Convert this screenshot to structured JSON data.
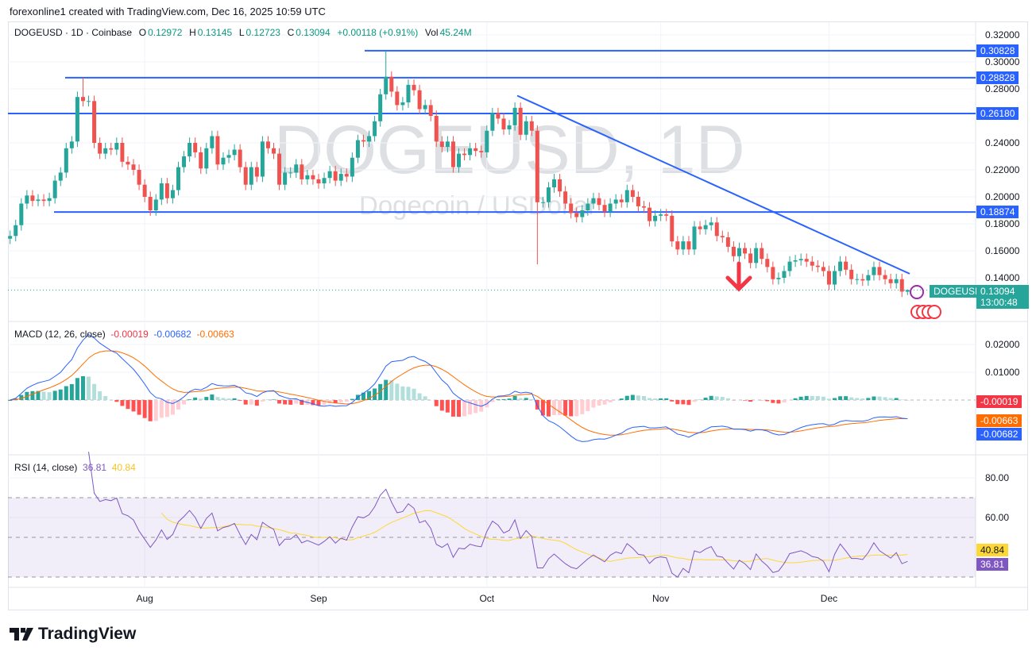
{
  "credit": "forexonline1 created with TradingView.com, Dec 16, 2025 10:59 UTC",
  "legend": {
    "symbol": "DOGEUSD · 1D · Coinbase",
    "o_label": "O",
    "o": "0.12972",
    "h_label": "H",
    "h": "0.13145",
    "l_label": "L",
    "l": "0.12723",
    "c_label": "C",
    "c": "0.13094",
    "change": "+0.00118 (+0.91%)",
    "vol_label": "Vol",
    "vol": "45.24M"
  },
  "watermark": {
    "title": "DOGEUSD, 1D",
    "subtitle": "Dogecoin / USDollar"
  },
  "colors": {
    "up": "#26a69a",
    "down": "#ef5350",
    "level_line": "#2962ff",
    "macd": "#2962ff",
    "signal": "#ff6d00",
    "rsi": "#7e57c2",
    "rsi_ma": "#fdd835",
    "arrow": "#f23645"
  },
  "price_tag": {
    "symbol": "DOGEUSD",
    "price": "0.13094",
    "countdown": "13:00:48"
  },
  "macd_legend": {
    "title": "MACD (12, 26, close)",
    "hist": "-0.00019",
    "macd": "-0.00682",
    "signal": "-0.00663"
  },
  "rsi_legend": {
    "title": "RSI (14, close)",
    "rsi": "36.81",
    "ma": "40.84"
  },
  "bottom_logo": "TradingView",
  "chart_data": [
    {
      "type": "candlestick",
      "title": "DOGEUSD · 1D · Coinbase",
      "ylim": [
        0.125,
        0.32
      ],
      "y_ticks": [
        "0.32000",
        "0.30000",
        "0.28000",
        "0.24000",
        "0.22000",
        "0.20000",
        "0.18000",
        "0.16000",
        "0.14000"
      ],
      "x_ticks": [
        "Aug",
        "Sep",
        "Oct",
        "Nov",
        "Dec"
      ],
      "closes": [
        0.171,
        0.179,
        0.195,
        0.201,
        0.197,
        0.198,
        0.197,
        0.199,
        0.212,
        0.218,
        0.236,
        0.241,
        0.274,
        0.271,
        0.271,
        0.24,
        0.232,
        0.236,
        0.235,
        0.24,
        0.226,
        0.224,
        0.22,
        0.209,
        0.2,
        0.19,
        0.198,
        0.21,
        0.199,
        0.205,
        0.222,
        0.23,
        0.24,
        0.233,
        0.221,
        0.236,
        0.245,
        0.224,
        0.229,
        0.231,
        0.235,
        0.222,
        0.209,
        0.222,
        0.215,
        0.241,
        0.236,
        0.232,
        0.209,
        0.218,
        0.218,
        0.224,
        0.213,
        0.216,
        0.213,
        0.21,
        0.214,
        0.219,
        0.212,
        0.217,
        0.215,
        0.229,
        0.242,
        0.241,
        0.245,
        0.256,
        0.276,
        0.289,
        0.278,
        0.268,
        0.27,
        0.283,
        0.279,
        0.265,
        0.268,
        0.26,
        0.241,
        0.237,
        0.241,
        0.222,
        0.232,
        0.231,
        0.236,
        0.234,
        0.233,
        0.249,
        0.262,
        0.258,
        0.25,
        0.253,
        0.266,
        0.246,
        0.256,
        0.249,
        0.196,
        0.196,
        0.207,
        0.213,
        0.204,
        0.195,
        0.188,
        0.185,
        0.19,
        0.195,
        0.199,
        0.194,
        0.189,
        0.195,
        0.198,
        0.196,
        0.205,
        0.2,
        0.193,
        0.192,
        0.182,
        0.186,
        0.187,
        0.186,
        0.167,
        0.161,
        0.167,
        0.161,
        0.178,
        0.176,
        0.179,
        0.181,
        0.171,
        0.17,
        0.163,
        0.156,
        0.162,
        0.158,
        0.151,
        0.162,
        0.154,
        0.148,
        0.139,
        0.14,
        0.145,
        0.152,
        0.153,
        0.154,
        0.152,
        0.149,
        0.148,
        0.145,
        0.135,
        0.145,
        0.152,
        0.146,
        0.139,
        0.139,
        0.138,
        0.142,
        0.148,
        0.142,
        0.139,
        0.136,
        0.139,
        0.12976,
        0.13094
      ],
      "notable_wicks": [
        {
          "candle": 13,
          "high": 0.2883
        },
        {
          "candle": 67,
          "high": 0.3083
        },
        {
          "candle": 94,
          "low": 0.15
        }
      ],
      "horizontal_levels": [
        {
          "price": 0.30828,
          "label": "0.30828"
        },
        {
          "price": 0.28828,
          "label": "0.28828"
        },
        {
          "price": 0.2618,
          "label": "0.26180"
        },
        {
          "price": 0.18874,
          "label": "0.18874"
        }
      ],
      "trendline": {
        "from_price": 0.275,
        "to_price": 0.143
      },
      "annotation": "down-arrow"
    },
    {
      "type": "line",
      "title": "MACD (12, 26, close)",
      "y_ticks": [
        "0.02000",
        "0.01000"
      ],
      "series": [
        {
          "name": "MACD"
        },
        {
          "name": "Signal"
        },
        {
          "name": "Histogram"
        }
      ],
      "last": {
        "hist": "-0.00019",
        "signal": "-0.00663",
        "macd": "-0.00682"
      }
    },
    {
      "type": "line",
      "title": "RSI (14, close)",
      "y_ticks": [
        "80.00",
        "60.00"
      ],
      "bands": [
        30,
        50,
        70
      ],
      "last": {
        "ma": "40.84",
        "rsi": "36.81"
      }
    }
  ]
}
